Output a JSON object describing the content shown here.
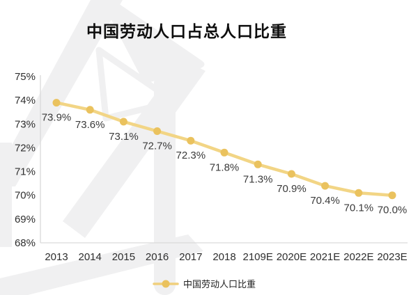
{
  "header": {
    "title": "中国劳动人口占总人口比重"
  },
  "legend": {
    "label": "中国劳动人口比重",
    "marker": "line-dot-marker"
  },
  "colors": {
    "line": "#F2D585",
    "dot": "#EAC25E",
    "axis": "#D9D9D9",
    "tick_text": "#2E2E2E",
    "data_label_text": "#3A3A3A",
    "title_text": "#0D0D0D",
    "watermark": "#F0F0F1",
    "background": "#FFFFFF"
  },
  "chart_data": {
    "type": "line",
    "title": "中国劳动人口占总人口比重",
    "categories": [
      "2013",
      "2014",
      "2015",
      "2016",
      "2017",
      "2018",
      "2109E",
      "2020E",
      "2021E",
      "2022E",
      "2023E"
    ],
    "series": [
      {
        "name": "中国劳动人口比重",
        "values": [
          73.9,
          73.6,
          73.1,
          72.7,
          72.3,
          71.8,
          71.3,
          70.9,
          70.4,
          70.1,
          70.0
        ]
      }
    ],
    "point_labels": [
      "73.9%",
      "73.6%",
      "73.1%",
      "72.7%",
      "72.3%",
      "71.8%",
      "71.3%",
      "70.9%",
      "70.4%",
      "70.1%",
      "70.0%"
    ],
    "ylim": [
      68,
      75
    ],
    "ytick_labels": [
      "75%",
      "74%",
      "73%",
      "72%",
      "71%",
      "70%",
      "69%",
      "68%"
    ],
    "xlabel": "",
    "ylabel": "",
    "grid": false,
    "legend_position": "bottom"
  }
}
